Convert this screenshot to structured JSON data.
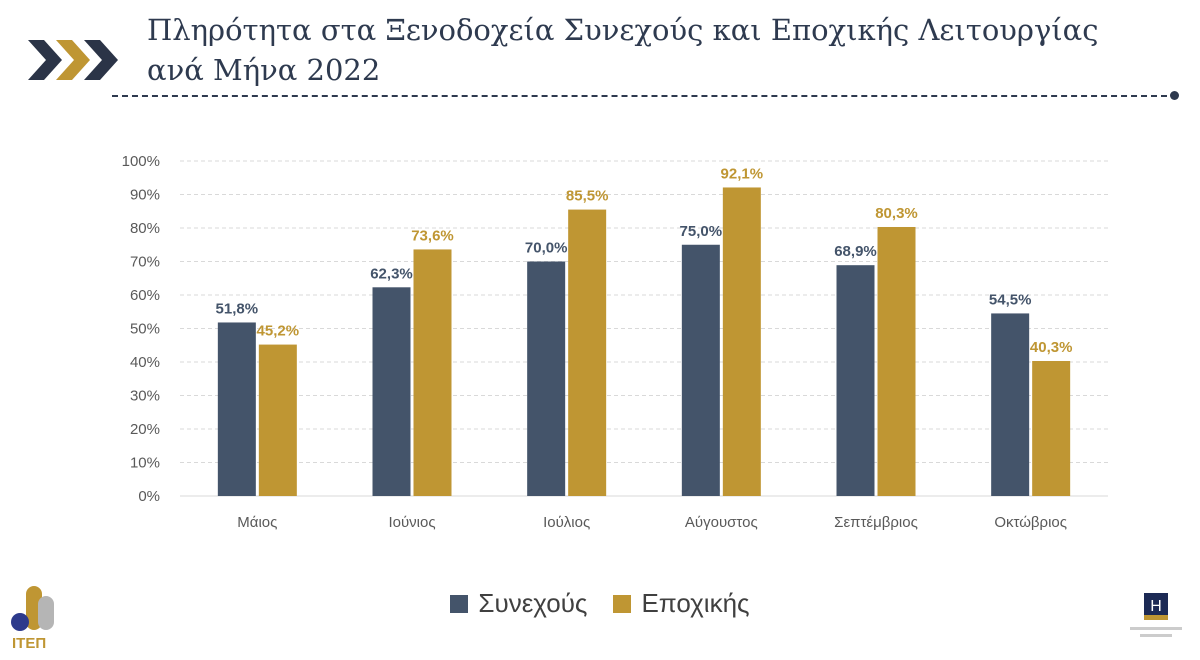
{
  "header": {
    "title_line1": "Πληρότητα στα Ξενοδοχεία Συνεχούς και Εποχικής Λειτουργίας",
    "title_line2": "ανά Μήνα 2022"
  },
  "logos": {
    "left": "ΙΤΕΠ",
    "right": "H"
  },
  "chart_data": {
    "type": "bar",
    "title": "Πληρότητα στα Ξενοδοχεία Συνεχούς και Εποχικής Λειτουργίας ανά Μήνα 2022",
    "categories": [
      "Μάιος",
      "Ιούνιος",
      "Ιούλιος",
      "Αύγουστος",
      "Σεπτέμβριος",
      "Οκτώβριος"
    ],
    "series": [
      {
        "name": "Συνεχούς",
        "color": "#44546a",
        "values": [
          51.8,
          62.3,
          70.0,
          75.0,
          68.9,
          54.5
        ],
        "labels": [
          "51,8%",
          "62,3%",
          "70,0%",
          "75,0%",
          "68,9%",
          "54,5%"
        ]
      },
      {
        "name": "Εποχικής",
        "color": "#bf9633",
        "values": [
          45.2,
          73.6,
          85.5,
          92.1,
          80.3,
          40.3
        ],
        "labels": [
          "45,2%",
          "73,6%",
          "85,5%",
          "92,1%",
          "80,3%",
          "40,3%"
        ]
      }
    ],
    "yticks": [
      "0%",
      "10%",
      "20%",
      "30%",
      "40%",
      "50%",
      "60%",
      "70%",
      "80%",
      "90%",
      "100%"
    ],
    "ylim": [
      0,
      100
    ],
    "grid": true,
    "legend": "bottom",
    "xlabel": "",
    "ylabel": ""
  }
}
